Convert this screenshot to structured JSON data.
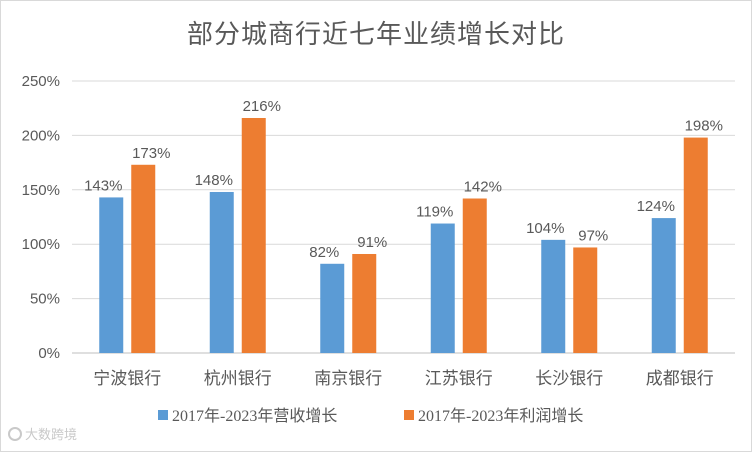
{
  "chart_data": {
    "type": "bar",
    "title": "部分城商行近七年业绩增长对比",
    "categories": [
      "宁波银行",
      "杭州银行",
      "南京银行",
      "江苏银行",
      "长沙银行",
      "成都银行"
    ],
    "series": [
      {
        "name": "2017年-2023年营收增长",
        "values": [
          143,
          148,
          82,
          119,
          104,
          124
        ],
        "labels": [
          "143%",
          "148%",
          "82%",
          "119%",
          "104%",
          "124%"
        ],
        "color": "#5b9bd5"
      },
      {
        "name": "2017年-2023年利润增长",
        "values": [
          173,
          216,
          91,
          142,
          97,
          198
        ],
        "labels": [
          "173%",
          "216%",
          "91%",
          "142%",
          "97%",
          "198%"
        ],
        "color": "#ed7d31"
      }
    ],
    "yticks": [
      "0%",
      "50%",
      "100%",
      "150%",
      "200%",
      "250%"
    ],
    "ylim": [
      0,
      250
    ],
    "grid": true,
    "legend": "bottom"
  },
  "watermark": "大数跨境",
  "colors": {
    "gridline": "#d9d9d9",
    "text": "#595959"
  }
}
